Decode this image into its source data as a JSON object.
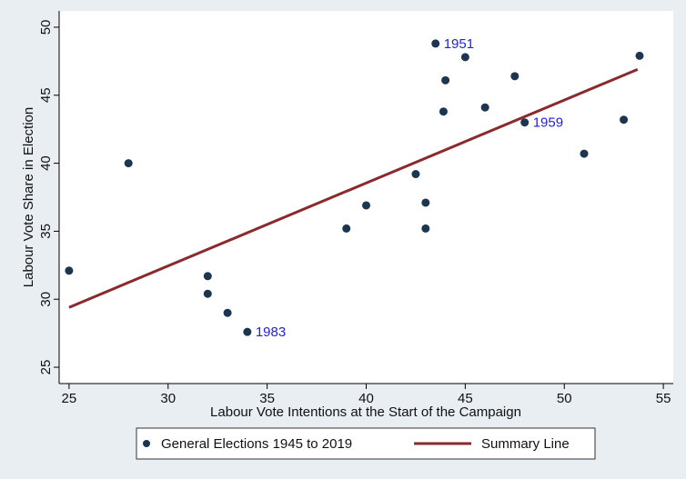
{
  "chart_data": {
    "type": "scatter",
    "xlabel": "Labour Vote Intentions at the Start of the Campaign",
    "ylabel": "Labour Vote Share in Election",
    "xlim": [
      24.5,
      55.5
    ],
    "ylim": [
      23.8,
      51.2
    ],
    "xticks": [
      25,
      30,
      35,
      40,
      45,
      50,
      55
    ],
    "yticks": [
      25,
      30,
      35,
      40,
      45,
      50
    ],
    "grid": false,
    "legend_position": "bottom",
    "colors": {
      "background": "#e9eef3",
      "plot_area": "#ffffff",
      "points": "#1c3550",
      "line": "#8b2a2c",
      "annotation": "#2222dd"
    },
    "series": [
      {
        "name": "General Elections 1945 to 2019",
        "marker": "circle",
        "points": [
          {
            "x": 25,
            "y": 32.1
          },
          {
            "x": 28,
            "y": 40.0
          },
          {
            "x": 32,
            "y": 31.7
          },
          {
            "x": 32,
            "y": 30.4
          },
          {
            "x": 33,
            "y": 29.0
          },
          {
            "x": 34,
            "y": 27.6
          },
          {
            "x": 39,
            "y": 35.2
          },
          {
            "x": 40,
            "y": 36.9
          },
          {
            "x": 42.5,
            "y": 39.2
          },
          {
            "x": 43,
            "y": 37.1
          },
          {
            "x": 43,
            "y": 35.2
          },
          {
            "x": 43.5,
            "y": 48.8
          },
          {
            "x": 43.9,
            "y": 43.8
          },
          {
            "x": 44,
            "y": 46.1
          },
          {
            "x": 45,
            "y": 47.8
          },
          {
            "x": 46,
            "y": 44.1
          },
          {
            "x": 47.5,
            "y": 46.4
          },
          {
            "x": 48,
            "y": 43.0
          },
          {
            "x": 51,
            "y": 40.7
          },
          {
            "x": 53,
            "y": 43.2
          },
          {
            "x": 53.8,
            "y": 47.9
          }
        ]
      },
      {
        "name": "Summary Line",
        "type": "line",
        "points": [
          {
            "x": 25,
            "y": 29.4
          },
          {
            "x": 53.7,
            "y": 46.9
          }
        ]
      }
    ],
    "annotations": [
      {
        "text": "1951",
        "x": 43.5,
        "y": 48.8
      },
      {
        "text": "1959",
        "x": 48,
        "y": 43.0
      },
      {
        "text": "1983",
        "x": 34,
        "y": 27.6
      }
    ]
  }
}
